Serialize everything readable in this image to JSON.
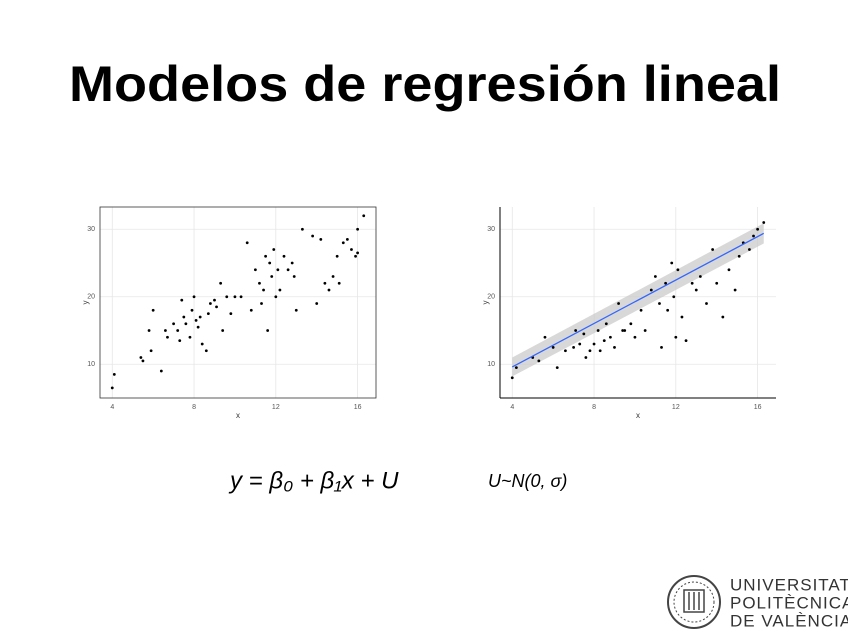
{
  "title": "Modelos de regresión lineal",
  "chart_data": [
    {
      "type": "scatter",
      "x_label": "x",
      "y_label": "y",
      "color": "#000000",
      "frame": "box",
      "grid": true,
      "xlim": [
        3.4,
        16.9
      ],
      "ylim": [
        5.0,
        33.3
      ],
      "xticks": [
        4,
        8,
        12,
        16
      ],
      "yticks": [
        10,
        20,
        30
      ],
      "x": [
        4.0,
        4.1,
        5.4,
        5.5,
        5.8,
        5.9,
        6.0,
        6.4,
        6.6,
        6.7,
        7.0,
        7.2,
        7.3,
        7.4,
        7.5,
        7.6,
        7.8,
        7.9,
        8.0,
        8.1,
        8.2,
        8.3,
        8.4,
        8.6,
        8.7,
        8.8,
        9.0,
        9.1,
        9.3,
        9.4,
        9.6,
        9.8,
        10.0,
        10.3,
        10.6,
        10.8,
        11.0,
        11.2,
        11.3,
        11.4,
        11.5,
        11.6,
        11.7,
        11.8,
        11.9,
        12.0,
        12.1,
        12.2,
        12.4,
        12.6,
        12.8,
        12.9,
        13.0,
        13.3,
        13.8,
        14.0,
        14.2,
        14.4,
        14.6,
        14.8,
        15.0,
        15.1,
        15.3,
        15.5,
        15.7,
        15.9,
        16.0,
        16.0,
        16.3
      ],
      "values": [
        6.5,
        8.5,
        11,
        10.5,
        15,
        12,
        18,
        9,
        15,
        14,
        16,
        15,
        13.5,
        19.5,
        17,
        16,
        14,
        18,
        20,
        16.5,
        15.5,
        17,
        13,
        12,
        17.5,
        19,
        19.5,
        18.5,
        22,
        15,
        20,
        17.5,
        20,
        20,
        28,
        18,
        24,
        22,
        19,
        21,
        26,
        15,
        25,
        23,
        27,
        20,
        24,
        21,
        26,
        24,
        25,
        23,
        18,
        30,
        29,
        19,
        28.5,
        22,
        21,
        23,
        26,
        22,
        28,
        28.5,
        27,
        26,
        30,
        26.5,
        32
      ]
    },
    {
      "type": "scatter",
      "x_label": "x",
      "y_label": "y",
      "color": "#000000",
      "frame": "axes",
      "grid": true,
      "xlim": [
        3.4,
        16.9
      ],
      "ylim": [
        5.0,
        33.3
      ],
      "xticks": [
        4,
        8,
        12,
        16
      ],
      "yticks": [
        10,
        20,
        30
      ],
      "x": [
        4.0,
        4.2,
        5.0,
        5.3,
        5.6,
        6.0,
        6.2,
        6.6,
        7.0,
        7.1,
        7.3,
        7.5,
        7.6,
        7.8,
        8.0,
        8.2,
        8.3,
        8.5,
        8.6,
        8.8,
        9.0,
        9.2,
        9.4,
        9.5,
        9.8,
        10.0,
        10.3,
        10.5,
        10.8,
        11.0,
        11.2,
        11.3,
        11.5,
        11.6,
        11.8,
        11.9,
        12.0,
        12.1,
        12.3,
        12.5,
        12.8,
        13.0,
        13.2,
        13.5,
        13.8,
        14.0,
        14.3,
        14.6,
        14.9,
        15.1,
        15.3,
        15.6,
        15.8,
        16.0,
        16.3
      ],
      "values": [
        8,
        9.5,
        11,
        10.5,
        14,
        12.5,
        9.5,
        12,
        12.5,
        15,
        13,
        14.5,
        11,
        12,
        13,
        15,
        12,
        13.5,
        16,
        14,
        12.5,
        19,
        15,
        15,
        16,
        14,
        18,
        15,
        21,
        23,
        19,
        12.5,
        22,
        18,
        25,
        20,
        14,
        24,
        17,
        13.5,
        22,
        21,
        23,
        19,
        27,
        22,
        17,
        24,
        21,
        26,
        28,
        27,
        29,
        30,
        31
      ],
      "trend": {
        "color": "#3366ff",
        "band_color": "#c8c8c8",
        "x": [
          4.0,
          16.3
        ],
        "y": [
          9.6,
          29.4
        ],
        "lower": [
          8.2,
          27.9
        ],
        "upper": [
          11.0,
          30.9
        ]
      }
    }
  ],
  "formulas": [
    "y = β₀ + β₁x + U",
    "U~N(0, σ)"
  ],
  "logo": [
    "UNIVERSITAT",
    "POLITÈCNICA",
    "DE VALÈNCIA"
  ]
}
